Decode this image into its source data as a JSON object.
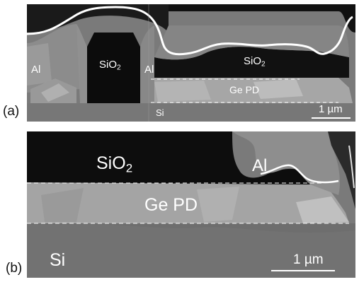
{
  "panel_a": {
    "label": "(a)",
    "materials": {
      "al_left": "Al",
      "sio2_pillar_base": "SiO",
      "sio2_pillar_sub": "2",
      "al_center": "Al",
      "sio2_right_base": "SiO",
      "sio2_right_sub": "2",
      "ge_pd": "Ge PD",
      "si": "Si"
    },
    "scale_bar_label": "1 µm"
  },
  "panel_b": {
    "label": "(b)",
    "materials": {
      "sio2_base": "SiO",
      "sio2_sub": "2",
      "al": "Al",
      "ge_pd": "Ge PD",
      "si": "Si"
    },
    "scale_bar_label": "1 µm"
  },
  "colors": {
    "background": "#ffffff",
    "oxide_dark": "#0a0a0a",
    "metal_gray": "#8a8a8a",
    "germanium_gray": "#a8a8a8",
    "silicon_gray": "#707070",
    "outline_white": "#ffffff"
  }
}
